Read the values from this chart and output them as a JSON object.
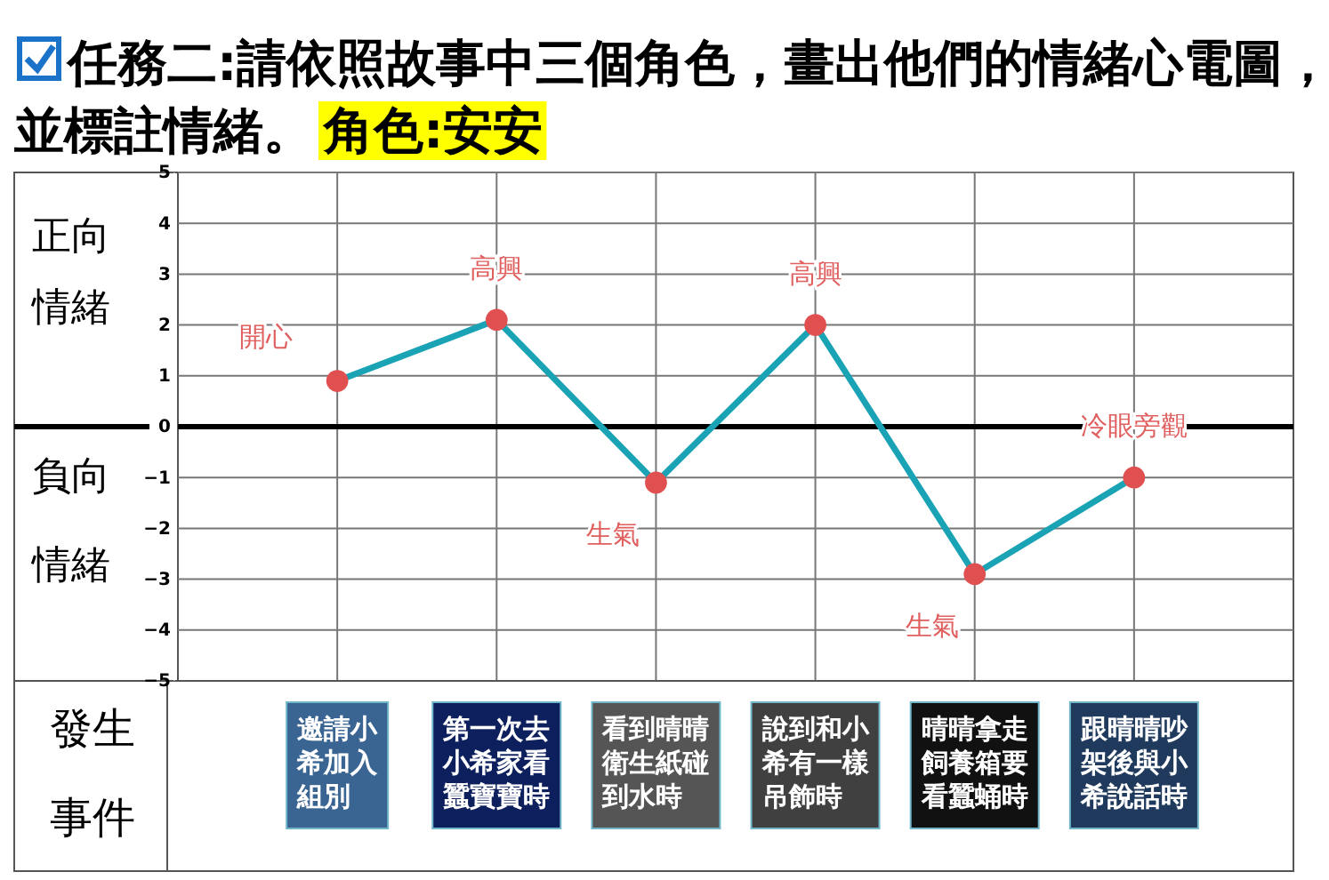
{
  "chart_data": {
    "type": "line",
    "title": "任務二:請依照故事中三個角色，畫出他們的情緒心電圖，並標註情緒。",
    "subtitle": "角色:安安",
    "xlabel": "發生事件",
    "categories": [
      "邀請小希加入組別",
      "第一次去小希家看蠶寶寶時",
      "看到晴晴衛生紙碰到水時",
      "說到和小希有一樣吊飾時",
      "晴晴拿走飼養箱要看蠶蛹時",
      "跟晴晴吵架後與小希說話時"
    ],
    "series": [
      {
        "color": "#1aa3b5",
        "values": [
          0.9,
          2.1,
          -1.1,
          2.0,
          -2.9,
          -1.0
        ]
      }
    ],
    "ylim": [
      -5,
      5
    ],
    "yticks": [
      -5,
      -4,
      -3,
      -2,
      -1,
      0,
      1,
      2,
      3,
      4,
      5
    ],
    "ref_lines": [
      {
        "axis": "y",
        "value": 0,
        "label": null,
        "color": "#000000"
      }
    ],
    "annotations": [
      {
        "text": "開心",
        "x": "邀請小希加入組別",
        "y": 0.9
      },
      {
        "text": "高興",
        "x": "第一次去小希家看蠶寶寶時",
        "y": 2.1
      },
      {
        "text": "生氣",
        "x": "看到晴晴衛生紙碰到水時",
        "y": -1.1
      },
      {
        "text": "高興",
        "x": "說到和小希有一樣吊飾時",
        "y": 2.0
      },
      {
        "text": "生氣",
        "x": "晴晴拿走飼養箱要看蠶蛹時",
        "y": -2.9
      },
      {
        "text": "冷眼旁觀",
        "x": "跟晴晴吵架後與小希說話時",
        "y": -1.0
      },
      "正向情緒",
      "負向情緒"
    ],
    "grid": true,
    "marker": "circle",
    "line_style": "solid"
  }
}
